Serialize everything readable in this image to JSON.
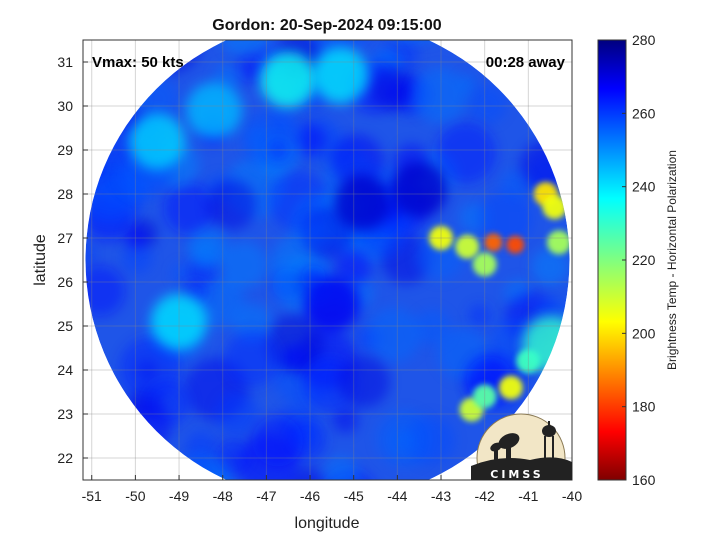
{
  "chart_data": {
    "type": "heatmap",
    "title": "Gordon: 20-Sep-2024 09:15:00",
    "xlabel": "longitude",
    "ylabel": "latitude",
    "xlim": [
      -51.2,
      -40
    ],
    "ylim": [
      21.5,
      31.5
    ],
    "x_ticks": [
      -51,
      -50,
      -49,
      -48,
      -47,
      -46,
      -45,
      -44,
      -43,
      -42,
      -41,
      -40
    ],
    "y_ticks": [
      22,
      23,
      24,
      25,
      26,
      27,
      28,
      29,
      30,
      31
    ],
    "grid": true,
    "annotations": {
      "vmax": "Vmax: 50 kts",
      "time_away": "00:28 away"
    },
    "colorbar": {
      "label": "Brightness Temp - Horizontal Polarization",
      "range": [
        160,
        280
      ],
      "ticks": [
        160,
        180,
        200,
        220,
        240,
        260,
        280
      ],
      "colormap": "jet"
    },
    "swath": {
      "center": [
        -45.6,
        26.5
      ],
      "radius_deg": 5.5
    },
    "features": [
      {
        "lon": -43.0,
        "lat": 27.0,
        "value": 205
      },
      {
        "lon": -41.8,
        "lat": 26.9,
        "value": 185
      },
      {
        "lon": -41.3,
        "lat": 26.85,
        "value": 182
      },
      {
        "lon": -42.4,
        "lat": 26.8,
        "value": 210
      },
      {
        "lon": -42.0,
        "lat": 26.4,
        "value": 215
      },
      {
        "lon": -40.6,
        "lat": 28.0,
        "value": 200
      },
      {
        "lon": -40.4,
        "lat": 27.7,
        "value": 205
      },
      {
        "lon": -40.3,
        "lat": 26.9,
        "value": 215
      },
      {
        "lon": -41.4,
        "lat": 23.6,
        "value": 205
      },
      {
        "lon": -42.3,
        "lat": 23.1,
        "value": 210
      },
      {
        "lon": -42.0,
        "lat": 23.4,
        "value": 225
      },
      {
        "lon": -41.0,
        "lat": 24.2,
        "value": 228
      },
      {
        "lon": -40.5,
        "lat": 24.6,
        "value": 230
      },
      {
        "lon": -46.5,
        "lat": 30.6,
        "value": 235
      },
      {
        "lon": -45.3,
        "lat": 30.7,
        "value": 240
      },
      {
        "lon": -48.2,
        "lat": 29.9,
        "value": 245
      },
      {
        "lon": -49.5,
        "lat": 29.2,
        "value": 242
      },
      {
        "lon": -49.0,
        "lat": 25.1,
        "value": 240
      },
      {
        "lon": -44.8,
        "lat": 27.8,
        "value": 272
      },
      {
        "lon": -43.5,
        "lat": 28.1,
        "value": 272
      },
      {
        "lon": -45.5,
        "lat": 25.5,
        "value": 268
      }
    ]
  },
  "logo": {
    "text": "CIMSS"
  }
}
